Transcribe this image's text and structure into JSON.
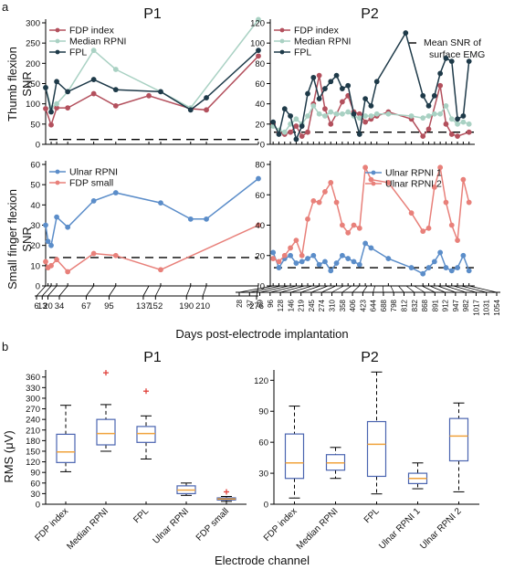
{
  "panel_a_letter": "a",
  "panel_b_letter": "b",
  "x_axis_label": "Days post-electrode implantation",
  "p1_title": "P1",
  "p2_title": "P2",
  "row_top_ylabel_1": "Thumb flexion",
  "row_top_ylabel_2": "SNR",
  "row_bottom_ylabel_1": "Small finger flexion",
  "row_bottom_ylabel_2": "SNR",
  "mean_snr_label_1": "Mean SNR of",
  "mean_snr_label_2": "surface EMG",
  "chart_data": [
    {
      "id": "p1_thumb",
      "type": "line",
      "title": "P1",
      "ylabel": "Thumb flexion SNR",
      "ylim": [
        0,
        300
      ],
      "yticks": [
        0,
        50,
        100,
        150,
        200,
        250,
        300
      ],
      "reference_line": 12,
      "series": [
        {
          "name": "FDP index",
          "color": "#b3505d",
          "points": [
            [
              6,
              88
            ],
            [
              13,
              48
            ],
            [
              20,
              90
            ],
            [
              34,
              90
            ],
            [
              67,
              125
            ],
            [
              95,
              95
            ],
            [
              137,
              120
            ],
            [
              190,
              88
            ],
            [
              210,
              85
            ],
            [
              276,
              218
            ]
          ]
        },
        {
          "name": "Median RPNI",
          "color": "#a9d1c3",
          "points": [
            [
              6,
              140
            ],
            [
              13,
              90
            ],
            [
              20,
              100
            ],
            [
              34,
              130
            ],
            [
              67,
              232
            ],
            [
              95,
              185
            ],
            [
              152,
              130
            ],
            [
              190,
              90
            ],
            [
              276,
              308
            ]
          ]
        },
        {
          "name": "FPL",
          "color": "#1e3a49",
          "points": [
            [
              6,
              140
            ],
            [
              13,
              80
            ],
            [
              20,
              155
            ],
            [
              34,
              130
            ],
            [
              67,
              160
            ],
            [
              95,
              135
            ],
            [
              152,
              130
            ],
            [
              190,
              85
            ],
            [
              210,
              115
            ],
            [
              276,
              232
            ]
          ]
        }
      ]
    },
    {
      "id": "p1_small",
      "type": "line",
      "ylabel": "Small finger flexion SNR",
      "ylim": [
        0,
        60
      ],
      "yticks": [
        0,
        10,
        20,
        30,
        40,
        50,
        60
      ],
      "reference_line": 14,
      "x_tick_labels": [
        "6",
        "13",
        "20",
        "34",
        "67",
        "95",
        "137",
        "152",
        "190",
        "210",
        "276"
      ],
      "series": [
        {
          "name": "Ulnar RPNI",
          "color": "#5b8dc9",
          "points": [
            [
              6,
              30
            ],
            [
              9,
              22
            ],
            [
              13,
              20
            ],
            [
              20,
              34
            ],
            [
              34,
              29
            ],
            [
              67,
              42
            ],
            [
              95,
              46
            ],
            [
              152,
              41
            ],
            [
              190,
              33
            ],
            [
              210,
              33
            ],
            [
              276,
              53
            ]
          ]
        },
        {
          "name": "FDP small",
          "color": "#e8807a",
          "points": [
            [
              6,
              12
            ],
            [
              9,
              9
            ],
            [
              13,
              10
            ],
            [
              20,
              13
            ],
            [
              34,
              7
            ],
            [
              67,
              16
            ],
            [
              95,
              15
            ],
            [
              152,
              8
            ],
            [
              276,
              30
            ]
          ]
        }
      ]
    },
    {
      "id": "p2_thumb",
      "type": "line",
      "title": "P2",
      "ylim": [
        0,
        120
      ],
      "yticks": [
        0,
        20,
        40,
        60,
        80,
        100,
        120
      ],
      "reference_line": 12,
      "series": [
        {
          "name": "FDP index",
          "color": "#b3505d",
          "points": [
            [
              0,
              20
            ],
            [
              1,
              12
            ],
            [
              2,
              10
            ],
            [
              3,
              12
            ],
            [
              4,
              18
            ],
            [
              5,
              8
            ],
            [
              6,
              12
            ],
            [
              7,
              40
            ],
            [
              8,
              68
            ],
            [
              9,
              35
            ],
            [
              10,
              20
            ],
            [
              11,
              30
            ],
            [
              12,
              42
            ],
            [
              13,
              48
            ],
            [
              14,
              32
            ],
            [
              15,
              30
            ],
            [
              16,
              22
            ],
            [
              17,
              25
            ],
            [
              18,
              28
            ],
            [
              20,
              32
            ],
            [
              24,
              25
            ],
            [
              26,
              8
            ],
            [
              27,
              15
            ],
            [
              29,
              58
            ],
            [
              30,
              20
            ],
            [
              31,
              10
            ],
            [
              32,
              8
            ],
            [
              34,
              12
            ]
          ]
        },
        {
          "name": "Median RPNI",
          "color": "#a9d1c3",
          "points": [
            [
              0,
              18
            ],
            [
              1,
              14
            ],
            [
              2,
              12
            ],
            [
              3,
              20
            ],
            [
              4,
              25
            ],
            [
              5,
              20
            ],
            [
              6,
              28
            ],
            [
              7,
              38
            ],
            [
              8,
              30
            ],
            [
              9,
              28
            ],
            [
              10,
              32
            ],
            [
              11,
              30
            ],
            [
              12,
              30
            ],
            [
              13,
              32
            ],
            [
              14,
              28
            ],
            [
              15,
              26
            ],
            [
              16,
              28
            ],
            [
              17,
              28
            ],
            [
              18,
              30
            ],
            [
              20,
              30
            ],
            [
              24,
              28
            ],
            [
              26,
              26
            ],
            [
              27,
              28
            ],
            [
              28,
              30
            ],
            [
              29,
              30
            ],
            [
              30,
              38
            ],
            [
              31,
              25
            ],
            [
              32,
              20
            ],
            [
              33,
              22
            ],
            [
              34,
              20
            ]
          ]
        },
        {
          "name": "FPL",
          "color": "#1e3a49",
          "points": [
            [
              0,
              22
            ],
            [
              1,
              10
            ],
            [
              2,
              35
            ],
            [
              3,
              28
            ],
            [
              4,
              5
            ],
            [
              5,
              18
            ],
            [
              6,
              50
            ],
            [
              7,
              66
            ],
            [
              8,
              45
            ],
            [
              9,
              55
            ],
            [
              10,
              62
            ],
            [
              11,
              68
            ],
            [
              12,
              55
            ],
            [
              13,
              58
            ],
            [
              14,
              30
            ],
            [
              15,
              10
            ],
            [
              16,
              45
            ],
            [
              17,
              38
            ],
            [
              18,
              62
            ],
            [
              23,
              110
            ],
            [
              26,
              48
            ],
            [
              27,
              38
            ],
            [
              28,
              48
            ],
            [
              29,
              70
            ],
            [
              30,
              85
            ],
            [
              31,
              82
            ],
            [
              32,
              25
            ],
            [
              33,
              28
            ],
            [
              34,
              82
            ]
          ]
        }
      ]
    },
    {
      "id": "p2_small",
      "type": "line",
      "ylim": [
        0,
        80
      ],
      "yticks": [
        0,
        20,
        40,
        60,
        80
      ],
      "reference_line": 12,
      "x_tick_labels": [
        "28",
        "37",
        "69",
        "96",
        "128",
        "146",
        "219",
        "245",
        "274",
        "310",
        "358",
        "406",
        "423",
        "644",
        "688",
        "798",
        "812",
        "832",
        "868",
        "891",
        "912",
        "947",
        "982",
        "1017",
        "1031",
        "1054"
      ],
      "series": [
        {
          "name": "Ulnar RPNI 1",
          "color": "#5b8dc9",
          "points": [
            [
              0,
              22
            ],
            [
              1,
              12
            ],
            [
              2,
              18
            ],
            [
              3,
              20
            ],
            [
              4,
              15
            ],
            [
              5,
              16
            ],
            [
              6,
              18
            ],
            [
              7,
              20
            ],
            [
              8,
              14
            ],
            [
              9,
              16
            ],
            [
              10,
              10
            ],
            [
              11,
              15
            ],
            [
              12,
              20
            ],
            [
              13,
              18
            ],
            [
              14,
              16
            ],
            [
              15,
              14
            ],
            [
              16,
              28
            ],
            [
              17,
              25
            ],
            [
              20,
              18
            ],
            [
              24,
              12
            ],
            [
              26,
              8
            ],
            [
              27,
              12
            ],
            [
              28,
              16
            ],
            [
              29,
              22
            ],
            [
              30,
              12
            ],
            [
              31,
              10
            ],
            [
              32,
              12
            ],
            [
              33,
              20
            ],
            [
              34,
              10
            ]
          ]
        },
        {
          "name": "Ulnar RPNI 2",
          "color": "#e8807a",
          "points": [
            [
              0,
              18
            ],
            [
              1,
              16
            ],
            [
              2,
              20
            ],
            [
              3,
              25
            ],
            [
              4,
              30
            ],
            [
              5,
              20
            ],
            [
              6,
              44
            ],
            [
              7,
              56
            ],
            [
              8,
              55
            ],
            [
              9,
              62
            ],
            [
              10,
              68
            ],
            [
              11,
              55
            ],
            [
              12,
              40
            ],
            [
              13,
              35
            ],
            [
              14,
              40
            ],
            [
              15,
              38
            ],
            [
              16,
              78
            ],
            [
              17,
              70
            ],
            [
              20,
              68
            ],
            [
              24,
              48
            ],
            [
              26,
              36
            ],
            [
              27,
              38
            ],
            [
              28,
              65
            ],
            [
              29,
              78
            ],
            [
              30,
              55
            ],
            [
              31,
              40
            ],
            [
              32,
              30
            ],
            [
              33,
              70
            ],
            [
              34,
              55
            ]
          ]
        }
      ]
    },
    {
      "id": "p1_rms",
      "type": "box",
      "title": "P1",
      "xlabel": "Electrode channel",
      "ylabel": "RMS (μV)",
      "ylim": [
        0,
        380
      ],
      "yticks": [
        0,
        30,
        60,
        90,
        120,
        150,
        180,
        210,
        240,
        270,
        300,
        330,
        360
      ],
      "categories": [
        "FDP index",
        "Median RPNI",
        "FPL",
        "Ulnar RPNI",
        "FDP small"
      ],
      "boxes": [
        {
          "min": 92,
          "q1": 118,
          "median": 148,
          "q3": 198,
          "max": 280,
          "outliers": []
        },
        {
          "min": 150,
          "q1": 168,
          "median": 200,
          "q3": 240,
          "max": 282,
          "outliers": [
            372
          ]
        },
        {
          "min": 128,
          "q1": 175,
          "median": 200,
          "q3": 220,
          "max": 250,
          "outliers": [
            320
          ]
        },
        {
          "min": 25,
          "q1": 30,
          "median": 40,
          "q3": 52,
          "max": 60,
          "outliers": []
        },
        {
          "min": 8,
          "q1": 12,
          "median": 15,
          "q3": 18,
          "max": 22,
          "outliers": [
            35
          ]
        }
      ]
    },
    {
      "id": "p2_rms",
      "type": "box",
      "title": "P2",
      "ylim": [
        0,
        130
      ],
      "yticks": [
        0,
        30,
        60,
        90,
        120
      ],
      "categories": [
        "FDP index",
        "Median RPNI",
        "FPL",
        "Ulnar RPNI 1",
        "Ulnar RPNI 2"
      ],
      "boxes": [
        {
          "min": 6,
          "q1": 25,
          "median": 40,
          "q3": 68,
          "max": 95,
          "outliers": []
        },
        {
          "min": 25,
          "q1": 33,
          "median": 40,
          "q3": 48,
          "max": 55,
          "outliers": []
        },
        {
          "min": 10,
          "q1": 27,
          "median": 58,
          "q3": 80,
          "max": 128,
          "outliers": []
        },
        {
          "min": 15,
          "q1": 20,
          "median": 25,
          "q3": 30,
          "max": 40,
          "outliers": []
        },
        {
          "min": 12,
          "q1": 42,
          "median": 66,
          "q3": 83,
          "max": 98,
          "outliers": []
        }
      ]
    }
  ],
  "colors": {
    "box_edge": "#4a64b0",
    "median": "#f0a33c",
    "outlier": "#e0403a",
    "ref_line": "#000000"
  }
}
